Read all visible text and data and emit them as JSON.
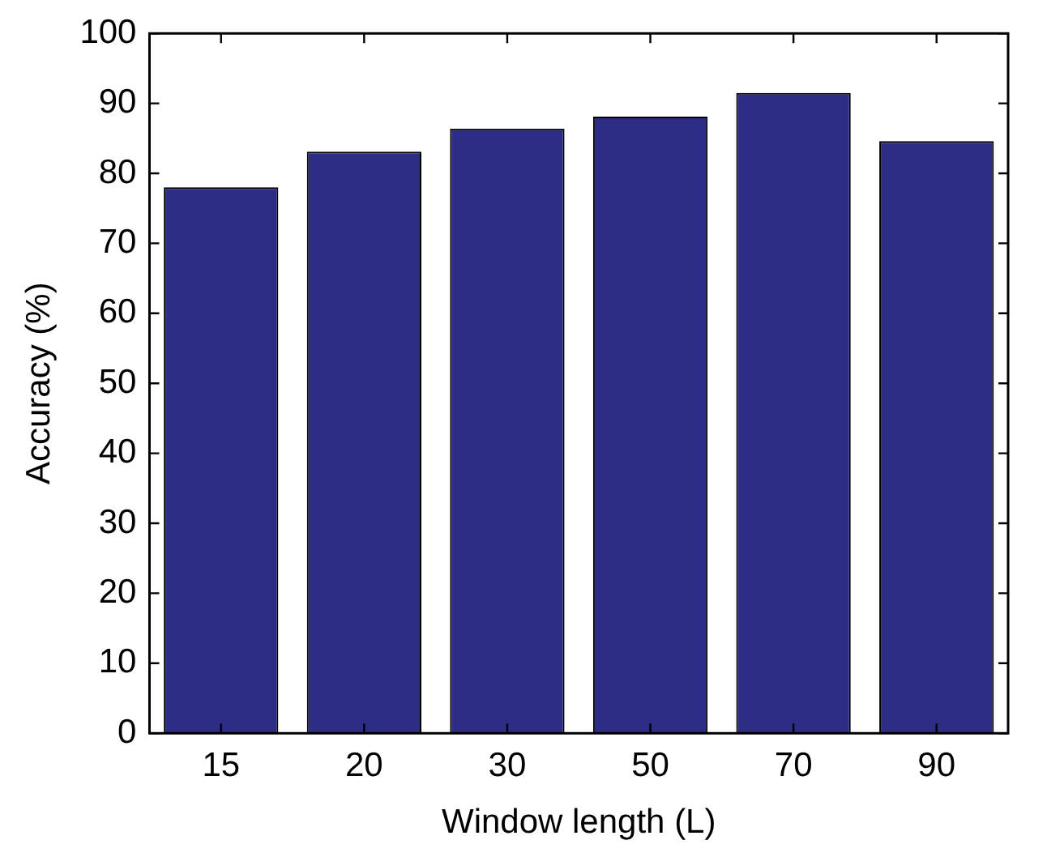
{
  "chart_data": {
    "type": "bar",
    "xlabel": "Window length (L)",
    "ylabel": "Accuracy (%)",
    "categories": [
      "15",
      "20",
      "30",
      "50",
      "70",
      "90"
    ],
    "values": [
      78,
      83.1,
      86.4,
      88.1,
      91.5,
      84.6
    ],
    "color": "#2d2d85",
    "ylim": [
      0,
      100
    ],
    "yticks": [
      0,
      10,
      20,
      30,
      40,
      50,
      60,
      70,
      80,
      90,
      100
    ],
    "grid": false,
    "legend": false
  }
}
